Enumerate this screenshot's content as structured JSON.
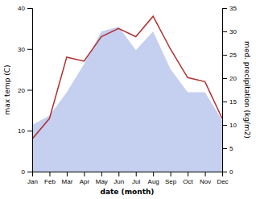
{
  "chart_data": {
    "type": "line",
    "categories": [
      "Jan",
      "Feb",
      "Mar",
      "Apr",
      "May",
      "Jun",
      "Jul",
      "Aug",
      "Sep",
      "Oct",
      "Nov",
      "Dec"
    ],
    "xlabel": "date (month)",
    "ylabel": "max temp (C)",
    "y2label": "med. precipitation (kg/m2)",
    "series": [
      {
        "type": "area",
        "axis": "y2",
        "color": "#c5cff0",
        "values": [
          10,
          12,
          17,
          23,
          30,
          31,
          26,
          30,
          22,
          17,
          17,
          11
        ]
      },
      {
        "type": "line",
        "color": "#b03030",
        "values": [
          8,
          13,
          28,
          27,
          33,
          35,
          33,
          38,
          30,
          23,
          22,
          13
        ]
      }
    ],
    "ylim": [
      0,
      40
    ],
    "yticks": [
      0,
      10,
      20,
      30,
      40
    ],
    "y2lim": [
      0,
      35
    ],
    "y2ticks": [
      0,
      5,
      10,
      15,
      20,
      25,
      30,
      35
    ],
    "grid": false
  }
}
